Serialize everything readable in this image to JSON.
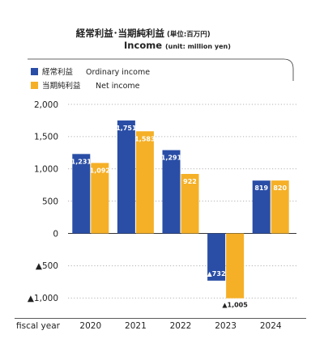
{
  "chart_data": {
    "type": "bar",
    "title_jp": "経常利益･当期純利益",
    "title_unit_jp": "(単位:百万円)",
    "title_en": "Income",
    "title_unit_en": "(unit: million yen)",
    "xlabel": "fiscal year",
    "categories": [
      "2020",
      "2021",
      "2022",
      "2023",
      "2024"
    ],
    "series": [
      {
        "name_jp": "経常利益",
        "name": "Ordinary income",
        "color": "#2a4ea6",
        "values": [
          1231,
          1751,
          1291,
          -732,
          819
        ],
        "labels": [
          "1,231",
          "1,751",
          "1,291",
          "▲732",
          "819"
        ]
      },
      {
        "name_jp": "当期純利益",
        "name": "Net income",
        "color": "#f5b027",
        "values": [
          1092,
          1583,
          922,
          -1005,
          820
        ],
        "labels": [
          "1,092",
          "1,583",
          "922",
          "▲1,005",
          "820"
        ]
      }
    ],
    "ylim": [
      -1100,
      2000
    ],
    "yticks": [
      2000,
      1500,
      1000,
      500,
      0,
      -500,
      -1000
    ],
    "ytick_labels": [
      "2,000",
      "1,500",
      "1,000",
      "500",
      "0",
      "▲500",
      "▲1,000"
    ],
    "grid": "horizontal dotted",
    "legend": "top-left"
  }
}
